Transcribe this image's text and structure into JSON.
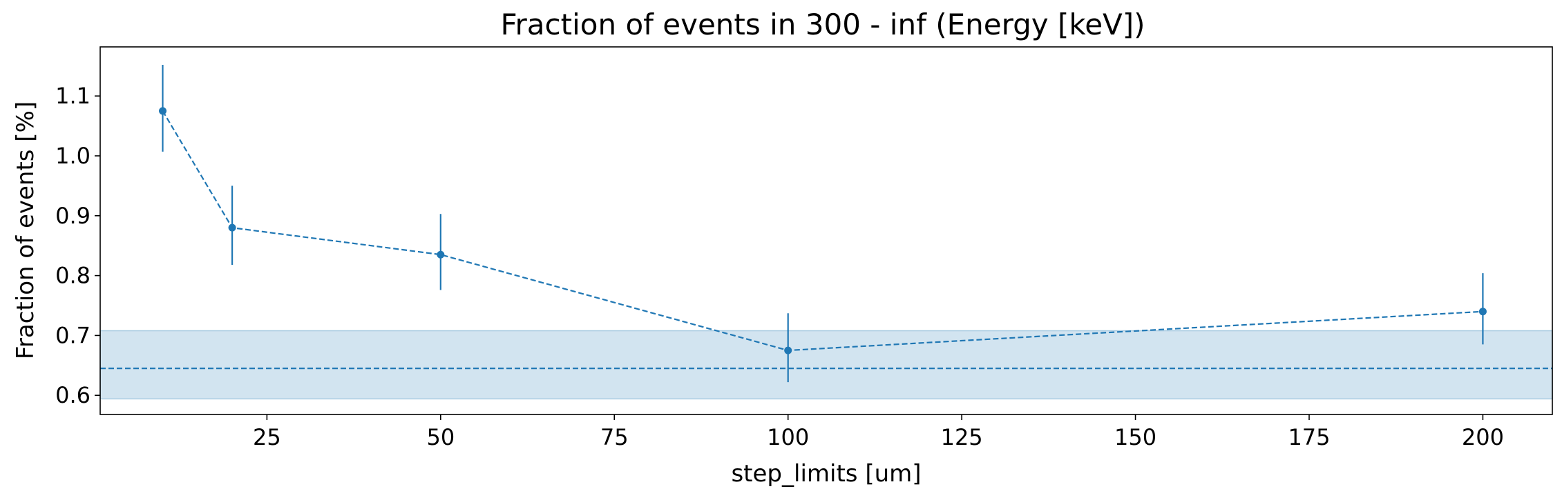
{
  "chart_data": {
    "type": "line",
    "title": "Fraction of events in 300 - inf (Energy [keV])",
    "xlabel": "step_limits [um]",
    "ylabel": "Fraction of events [%]",
    "xlim": [
      1,
      210
    ],
    "ylim": [
      0.568,
      1.182
    ],
    "xticks": [
      25,
      50,
      75,
      100,
      125,
      150,
      175,
      200
    ],
    "yticks": [
      0.6,
      0.7,
      0.8,
      0.9,
      1.0,
      1.1
    ],
    "ytick_labels": [
      "0.6",
      "0.7",
      "0.8",
      "0.9",
      "1.0",
      "1.1"
    ],
    "grid": false,
    "series": [
      {
        "x": [
          10,
          20,
          50,
          100,
          200
        ],
        "y": [
          1.075,
          0.88,
          0.835,
          0.675,
          0.74
        ],
        "yerr_low": [
          1.007,
          0.818,
          0.776,
          0.622,
          0.685
        ],
        "yerr_high": [
          1.152,
          0.95,
          0.903,
          0.737,
          0.804
        ],
        "linestyle": "dashed",
        "marker": "circle"
      }
    ],
    "reference": {
      "value": 0.645,
      "band": [
        0.594,
        0.708
      ],
      "linestyle": "dashed"
    },
    "colors": {
      "series": "#1f77b4",
      "band": "#1f77b4"
    }
  }
}
